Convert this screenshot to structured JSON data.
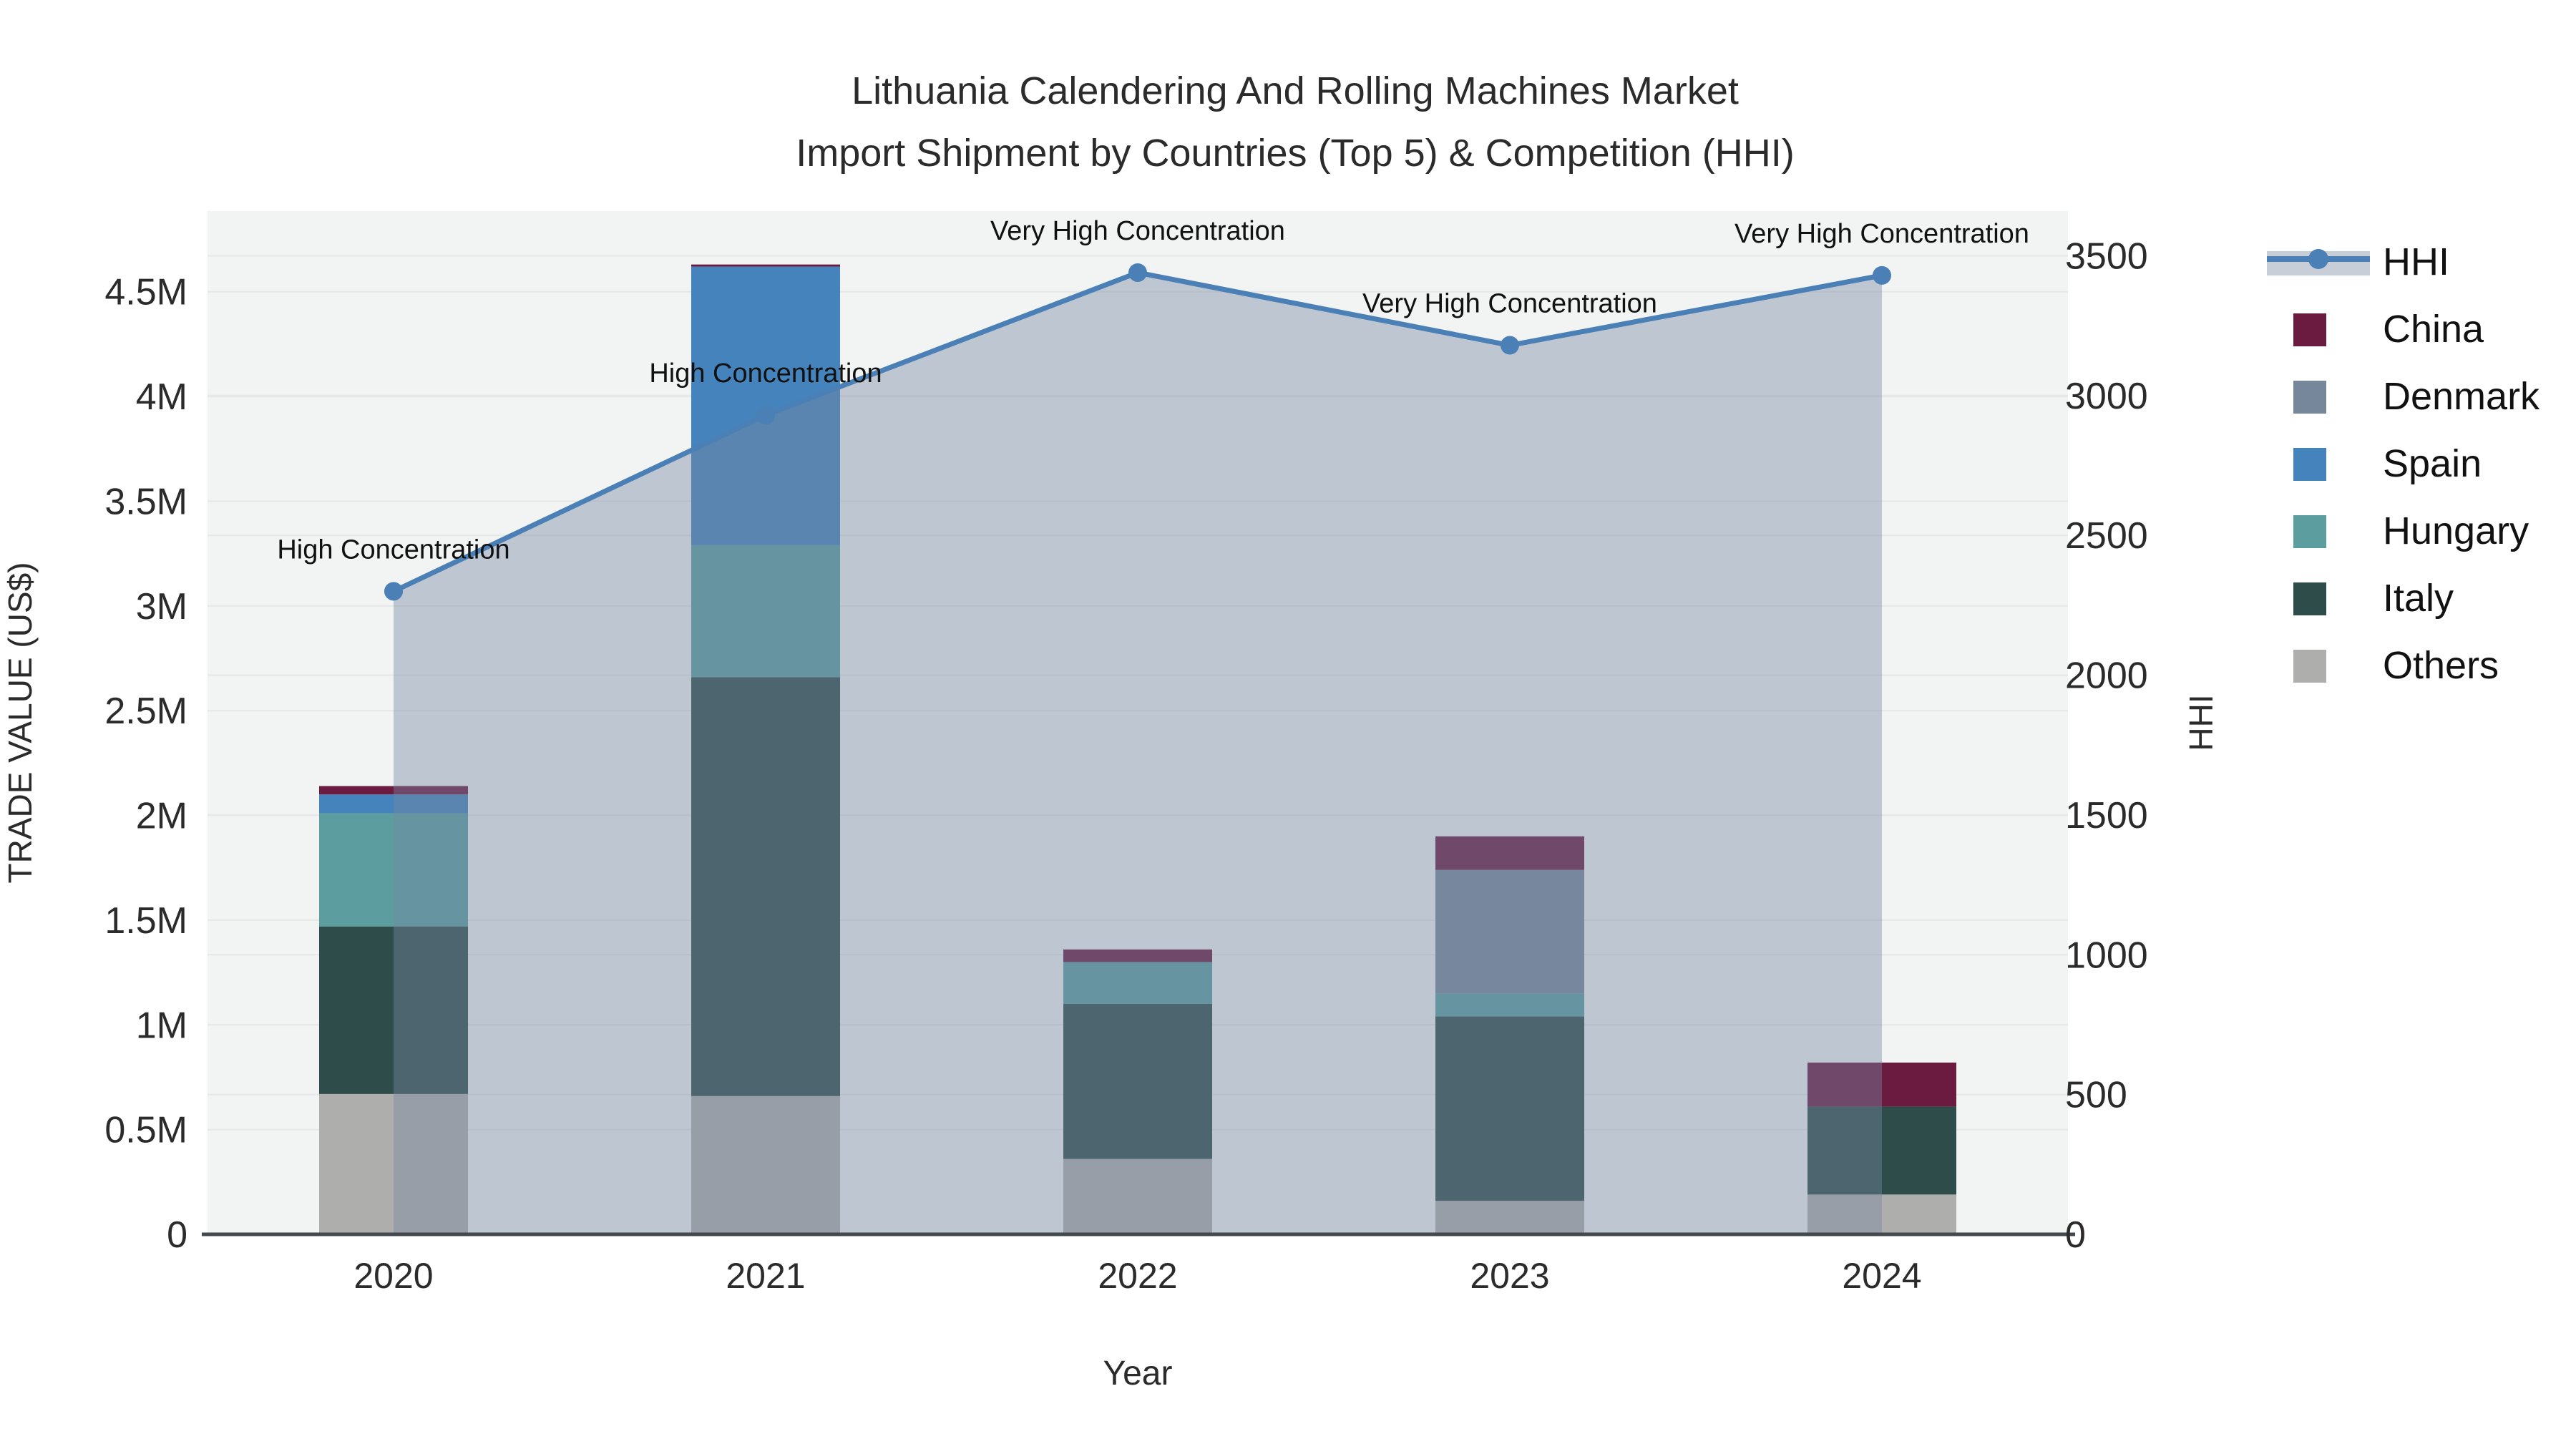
{
  "title": {
    "line1": "Lithuania Calendering And Rolling Machines Market",
    "line2": "Import Shipment by Countries (Top 5) & Competition (HHI)"
  },
  "axes": {
    "x_title": "Year",
    "y_left_title": "TRADE VALUE (US$)",
    "y_right_title": "HHI",
    "y_left_tick_labels": [
      "0",
      "0.5M",
      "1M",
      "1.5M",
      "2M",
      "2.5M",
      "3M",
      "3.5M",
      "4M",
      "4.5M"
    ],
    "y_left_tick_values": [
      0,
      500000,
      1000000,
      1500000,
      2000000,
      2500000,
      3000000,
      3500000,
      4000000,
      4500000
    ],
    "y_right_tick_labels": [
      "0",
      "500",
      "1000",
      "1500",
      "2000",
      "2500",
      "3000",
      "3500"
    ],
    "y_right_tick_values": [
      0,
      500,
      1000,
      1500,
      2000,
      2500,
      3000,
      3500
    ]
  },
  "chart_data": {
    "type": "bar",
    "subtype": "stacked-bars-with-line-overlay",
    "title": "Lithuania Calendering And Rolling Machines Market — Import Shipment by Countries (Top 5) & Competition (HHI)",
    "categories": [
      "2020",
      "2021",
      "2022",
      "2023",
      "2024"
    ],
    "stack_order_note": "series listed bottom-to-top of stack",
    "series": [
      {
        "name": "Others",
        "values": [
          670000,
          660000,
          360000,
          160000,
          190000
        ]
      },
      {
        "name": "Italy",
        "values": [
          800000,
          2000000,
          740000,
          880000,
          420000
        ]
      },
      {
        "name": "Hungary",
        "values": [
          540000,
          630000,
          200000,
          110000,
          0
        ]
      },
      {
        "name": "Spain",
        "values": [
          90000,
          1330000,
          0,
          0,
          0
        ]
      },
      {
        "name": "Denmark",
        "values": [
          0,
          0,
          0,
          590000,
          0
        ]
      },
      {
        "name": "China",
        "values": [
          40000,
          10000,
          60000,
          160000,
          210000
        ]
      }
    ],
    "line_series": {
      "name": "HHI",
      "axis": "right",
      "values": [
        2300,
        2930,
        3440,
        3180,
        3430
      ],
      "area_fill": true
    },
    "annotations": [
      {
        "category": "2020",
        "text": "High Concentration"
      },
      {
        "category": "2021",
        "text": "High Concentration"
      },
      {
        "category": "2022",
        "text": "Very High Concentration"
      },
      {
        "category": "2023",
        "text": "Very High Concentration"
      },
      {
        "category": "2024",
        "text": "Very High Concentration"
      }
    ],
    "xlabel": "Year",
    "ylabel": "TRADE VALUE (US$)",
    "ylabel_right": "HHI",
    "ylim_left": [
      0,
      4885000
    ],
    "ylim_right": [
      0,
      3660
    ],
    "grid": true,
    "legend_position": "right"
  },
  "legend": {
    "items": [
      {
        "label": "HHI",
        "type": "line"
      },
      {
        "label": "China",
        "type": "swatch"
      },
      {
        "label": "Denmark",
        "type": "swatch"
      },
      {
        "label": "Spain",
        "type": "swatch"
      },
      {
        "label": "Hungary",
        "type": "swatch"
      },
      {
        "label": "Italy",
        "type": "swatch"
      },
      {
        "label": "Others",
        "type": "swatch"
      }
    ]
  },
  "colors": {
    "China": "#6B1B40",
    "Denmark": "#76879B",
    "Spain": "#4483BB",
    "Hungary": "#5C9EA0",
    "Italy": "#2E4C4A",
    "Others": "#AEAEAD",
    "hhi_line": "#4A80B5",
    "hhi_area": "rgba(118,136,161,0.42)",
    "legend_band": "#C8CED8",
    "plot_bg": "#F2F3F3",
    "grid": "#E5E7E8",
    "axis_line": "#42484D",
    "text": "#2B2B2B"
  }
}
